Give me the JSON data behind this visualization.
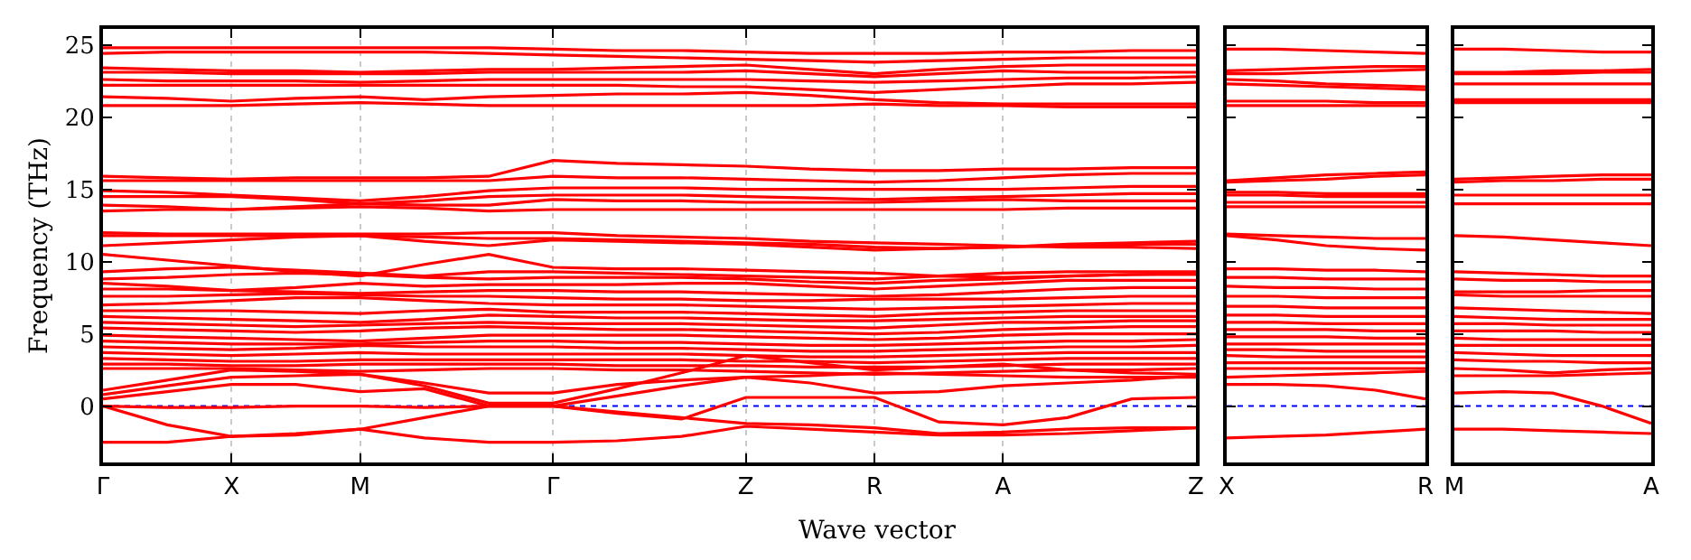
{
  "chart_data": [
    {
      "type": "line",
      "xlabel": "Wave vector",
      "ylabel": "Frequency (THz)",
      "grid": "x",
      "line_style": "solid",
      "categories": [
        "Γ",
        null,
        "X",
        null,
        "M",
        null,
        null,
        "Γ",
        null,
        null,
        "Z",
        null,
        "R",
        null,
        "A",
        null,
        null,
        "Z"
      ],
      "ylim": [
        -3.9,
        26.1
      ],
      "yticks": [
        0,
        5,
        10,
        15,
        20,
        25
      ],
      "ref_lines": [
        {
          "axis": "y",
          "value": 0,
          "color": "#0000ff",
          "line_style": "dotted"
        }
      ],
      "series": [
        {
          "color": "#ff0000",
          "values": [
            24.8,
            24.8,
            24.8,
            24.8,
            24.8,
            24.8,
            24.8,
            24.7,
            24.6,
            24.6,
            24.5,
            24.4,
            24.4,
            24.4,
            24.5,
            24.5,
            24.6,
            24.6
          ]
        },
        {
          "color": "#ff0000",
          "values": [
            24.4,
            24.5,
            24.5,
            24.5,
            24.5,
            24.5,
            24.4,
            24.3,
            24.2,
            24.1,
            24.0,
            23.9,
            23.8,
            23.9,
            24.0,
            24.1,
            24.1,
            24.1
          ]
        },
        {
          "color": "#ff0000",
          "values": [
            23.4,
            23.3,
            23.2,
            23.2,
            23.1,
            23.2,
            23.3,
            23.3,
            23.4,
            23.5,
            23.6,
            23.3,
            23.0,
            23.3,
            23.5,
            23.6,
            23.6,
            23.6
          ]
        },
        {
          "color": "#ff0000",
          "values": [
            23.1,
            23.1,
            23.0,
            23.0,
            23.0,
            23.0,
            23.1,
            23.1,
            23.1,
            23.1,
            23.2,
            23.0,
            22.8,
            23.0,
            23.2,
            23.1,
            23.1,
            23.1
          ]
        },
        {
          "color": "#ff0000",
          "values": [
            22.6,
            22.5,
            22.5,
            22.5,
            22.4,
            22.5,
            22.6,
            22.6,
            22.6,
            22.6,
            22.6,
            22.5,
            22.4,
            22.5,
            22.6,
            22.7,
            22.7,
            22.8
          ]
        },
        {
          "color": "#ff0000",
          "values": [
            22.2,
            22.2,
            22.2,
            22.2,
            22.2,
            22.2,
            22.2,
            22.2,
            22.2,
            22.1,
            22.1,
            21.9,
            21.7,
            21.9,
            22.1,
            22.3,
            22.3,
            22.4
          ]
        },
        {
          "color": "#ff0000",
          "values": [
            21.4,
            21.3,
            21.1,
            21.3,
            21.4,
            21.2,
            21.4,
            21.5,
            21.6,
            21.6,
            21.7,
            21.5,
            21.2,
            21.0,
            20.9,
            20.9,
            20.9,
            20.9
          ]
        },
        {
          "color": "#ff0000",
          "values": [
            20.8,
            20.8,
            20.8,
            20.9,
            21.0,
            20.9,
            20.8,
            20.8,
            20.8,
            20.8,
            20.8,
            20.8,
            20.9,
            20.8,
            20.8,
            20.7,
            20.7,
            20.7
          ]
        },
        {
          "color": "#ff0000",
          "values": [
            15.9,
            15.8,
            15.7,
            15.8,
            15.8,
            15.8,
            15.9,
            17.0,
            16.8,
            16.7,
            16.6,
            16.4,
            16.3,
            16.3,
            16.4,
            16.4,
            16.5,
            16.5
          ]
        },
        {
          "color": "#ff0000",
          "values": [
            15.6,
            15.6,
            15.6,
            15.6,
            15.6,
            15.6,
            15.6,
            15.9,
            15.8,
            15.8,
            15.7,
            15.6,
            15.5,
            15.6,
            15.8,
            16.0,
            16.1,
            16.1
          ]
        },
        {
          "color": "#ff0000",
          "values": [
            14.9,
            14.8,
            14.6,
            14.4,
            14.2,
            14.5,
            14.9,
            15.1,
            15.1,
            15.1,
            15.0,
            15.0,
            15.0,
            15.0,
            15.0,
            15.1,
            15.2,
            15.2
          ]
        },
        {
          "color": "#ff0000",
          "values": [
            14.5,
            14.5,
            14.5,
            14.3,
            14.0,
            14.2,
            14.5,
            14.6,
            14.6,
            14.6,
            14.5,
            14.4,
            14.3,
            14.4,
            14.5,
            14.6,
            14.7,
            14.7
          ]
        },
        {
          "color": "#ff0000",
          "values": [
            13.9,
            13.8,
            13.6,
            13.8,
            14.0,
            13.9,
            13.9,
            14.3,
            14.2,
            14.2,
            14.1,
            14.1,
            14.1,
            14.2,
            14.3,
            14.2,
            14.2,
            14.2
          ]
        },
        {
          "color": "#ff0000",
          "values": [
            13.5,
            13.6,
            13.6,
            13.7,
            13.8,
            13.7,
            13.5,
            13.6,
            13.6,
            13.6,
            13.6,
            13.6,
            13.6,
            13.6,
            13.6,
            13.7,
            13.7,
            13.7
          ]
        },
        {
          "color": "#ff0000",
          "values": [
            12.0,
            11.9,
            11.9,
            11.9,
            11.9,
            11.9,
            12.0,
            12.0,
            11.8,
            11.7,
            11.6,
            11.4,
            11.3,
            11.2,
            11.1,
            11.0,
            11.0,
            10.9
          ]
        },
        {
          "color": "#ff0000",
          "values": [
            11.8,
            11.8,
            11.8,
            11.8,
            11.8,
            11.7,
            11.6,
            11.6,
            11.5,
            11.4,
            11.3,
            11.2,
            11.0,
            10.9,
            11.0,
            11.1,
            11.2,
            11.2
          ]
        },
        {
          "color": "#ff0000",
          "values": [
            11.1,
            11.3,
            11.5,
            11.7,
            11.8,
            11.4,
            11.1,
            11.5,
            11.4,
            11.3,
            11.2,
            11.0,
            10.8,
            10.9,
            11.0,
            11.2,
            11.3,
            11.4
          ]
        },
        {
          "color": "#ff0000",
          "values": [
            10.5,
            10.1,
            9.7,
            9.3,
            9.0,
            9.8,
            10.5,
            9.6,
            9.5,
            9.5,
            9.4,
            9.3,
            9.2,
            9.0,
            8.9,
            9.0,
            9.1,
            9.2
          ]
        },
        {
          "color": "#ff0000",
          "values": [
            9.3,
            9.5,
            9.6,
            9.4,
            9.2,
            9.0,
            9.3,
            9.3,
            9.2,
            9.1,
            9.0,
            8.9,
            8.8,
            9.0,
            9.2,
            9.3,
            9.3,
            9.3
          ]
        },
        {
          "color": "#ff0000",
          "values": [
            8.8,
            8.9,
            9.1,
            9.2,
            9.1,
            8.9,
            8.8,
            8.9,
            8.9,
            8.9,
            8.8,
            8.6,
            8.5,
            8.7,
            8.8,
            9.0,
            9.1,
            9.1
          ]
        },
        {
          "color": "#ff0000",
          "values": [
            8.5,
            8.3,
            8.0,
            8.2,
            8.5,
            8.3,
            8.4,
            8.4,
            8.4,
            8.5,
            8.5,
            8.3,
            8.1,
            8.3,
            8.5,
            8.7,
            8.7,
            8.7
          ]
        },
        {
          "color": "#ff0000",
          "values": [
            8.1,
            8.1,
            8.0,
            7.9,
            7.8,
            7.9,
            8.0,
            8.0,
            7.9,
            7.9,
            7.8,
            7.7,
            7.6,
            7.7,
            7.9,
            8.1,
            8.2,
            8.2
          ]
        },
        {
          "color": "#ff0000",
          "values": [
            7.6,
            7.6,
            7.7,
            7.8,
            7.7,
            7.6,
            7.6,
            7.5,
            7.4,
            7.4,
            7.3,
            7.3,
            7.4,
            7.4,
            7.4,
            7.5,
            7.6,
            7.6
          ]
        },
        {
          "color": "#ff0000",
          "values": [
            7.0,
            7.1,
            7.3,
            7.5,
            7.5,
            7.3,
            7.1,
            7.0,
            7.0,
            7.0,
            6.9,
            6.8,
            6.7,
            6.8,
            6.9,
            7.0,
            7.1,
            7.1
          ]
        },
        {
          "color": "#ff0000",
          "values": [
            6.6,
            6.6,
            6.6,
            6.5,
            6.4,
            6.6,
            6.7,
            6.5,
            6.5,
            6.5,
            6.4,
            6.3,
            6.2,
            6.4,
            6.5,
            6.6,
            6.6,
            6.6
          ]
        },
        {
          "color": "#ff0000",
          "values": [
            6.2,
            6.1,
            6.0,
            5.9,
            5.8,
            6.0,
            6.3,
            6.2,
            6.1,
            6.1,
            6.0,
            5.9,
            5.9,
            6.0,
            6.1,
            6.2,
            6.2,
            6.2
          ]
        },
        {
          "color": "#ff0000",
          "values": [
            5.8,
            5.7,
            5.6,
            5.5,
            5.6,
            5.7,
            5.8,
            5.7,
            5.7,
            5.7,
            5.6,
            5.5,
            5.4,
            5.6,
            5.8,
            5.8,
            5.9,
            5.9
          ]
        },
        {
          "color": "#ff0000",
          "values": [
            5.4,
            5.3,
            5.2,
            5.1,
            5.2,
            5.4,
            5.5,
            5.4,
            5.3,
            5.3,
            5.2,
            5.1,
            5.0,
            5.1,
            5.3,
            5.4,
            5.5,
            5.5
          ]
        },
        {
          "color": "#ff0000",
          "values": [
            4.9,
            4.8,
            4.7,
            4.6,
            4.5,
            4.7,
            4.9,
            4.9,
            4.9,
            4.9,
            4.8,
            4.7,
            4.6,
            4.7,
            4.9,
            5.0,
            5.0,
            5.0
          ]
        },
        {
          "color": "#ff0000",
          "values": [
            4.5,
            4.4,
            4.3,
            4.3,
            4.3,
            4.4,
            4.5,
            4.5,
            4.4,
            4.4,
            4.3,
            4.2,
            4.2,
            4.3,
            4.4,
            4.5,
            4.5,
            4.6
          ]
        },
        {
          "color": "#ff0000",
          "values": [
            4.1,
            4.0,
            3.9,
            4.0,
            4.2,
            4.1,
            4.1,
            4.1,
            4.0,
            4.0,
            3.9,
            3.8,
            3.8,
            3.9,
            4.0,
            4.1,
            4.1,
            4.2
          ]
        },
        {
          "color": "#ff0000",
          "values": [
            3.7,
            3.6,
            3.5,
            3.6,
            3.7,
            3.6,
            3.6,
            3.6,
            3.6,
            3.6,
            3.5,
            3.4,
            3.4,
            3.5,
            3.6,
            3.7,
            3.7,
            3.7
          ]
        },
        {
          "color": "#ff0000",
          "values": [
            3.3,
            3.2,
            3.1,
            3.1,
            3.2,
            3.2,
            3.2,
            3.2,
            3.2,
            3.2,
            3.1,
            3.1,
            3.0,
            3.1,
            3.2,
            3.3,
            3.3,
            3.3
          ]
        },
        {
          "color": "#ff0000",
          "values": [
            2.9,
            2.9,
            2.8,
            2.8,
            2.9,
            2.9,
            2.9,
            2.9,
            2.8,
            2.8,
            2.8,
            2.7,
            2.7,
            2.7,
            2.8,
            2.9,
            2.9,
            2.9
          ]
        },
        {
          "color": "#ff0000",
          "values": [
            2.6,
            2.6,
            2.6,
            2.5,
            2.4,
            2.5,
            2.6,
            2.6,
            2.5,
            2.5,
            2.4,
            2.3,
            2.2,
            2.3,
            2.4,
            2.5,
            2.5,
            2.6
          ]
        },
        {
          "color": "#ff0000",
          "values": [
            1.1,
            1.8,
            2.5,
            2.4,
            2.2,
            1.6,
            0.9,
            0.9,
            1.5,
            1.8,
            2.0,
            2.1,
            2.3,
            2.2,
            2.1,
            2.0,
            2.0,
            2.0
          ]
        },
        {
          "color": "#ff0000",
          "values": [
            0.8,
            1.4,
            2.0,
            2.1,
            2.2,
            1.4,
            0.2,
            0.2,
            1.2,
            2.3,
            3.5,
            3.0,
            2.5,
            2.7,
            2.9,
            2.5,
            2.3,
            2.2
          ]
        },
        {
          "color": "#ff0000",
          "values": [
            0.5,
            1.0,
            1.5,
            1.5,
            1.0,
            1.2,
            0.0,
            0.0,
            0.7,
            1.4,
            2.0,
            1.6,
            0.9,
            1.0,
            1.4,
            1.6,
            1.8,
            2.1
          ]
        },
        {
          "color": "#ff0000",
          "values": [
            0.0,
            -0.1,
            -0.1,
            0.0,
            0.0,
            -0.1,
            0.0,
            0.0,
            -0.5,
            -0.9,
            0.6,
            0.6,
            0.6,
            -1.1,
            -1.3,
            -0.8,
            0.5,
            0.6
          ]
        },
        {
          "color": "#ff0000",
          "values": [
            0.0,
            -1.3,
            -2.1,
            -2.0,
            -1.6,
            -0.8,
            0.0,
            0.0,
            -0.4,
            -0.8,
            -1.2,
            -1.3,
            -1.5,
            -1.9,
            -1.8,
            -1.6,
            -1.5,
            -1.5
          ]
        },
        {
          "color": "#ff0000",
          "values": [
            -2.5,
            -2.5,
            -2.1,
            -1.9,
            -1.6,
            -2.2,
            -2.5,
            -2.5,
            -2.4,
            -2.1,
            -1.4,
            -1.6,
            -1.8,
            -2.0,
            -2.0,
            -1.9,
            -1.7,
            -1.5
          ]
        }
      ]
    },
    {
      "type": "line",
      "grid": false,
      "line_style": "solid",
      "tick_labels": "x",
      "categories": [
        "X",
        null,
        null,
        null,
        "R"
      ],
      "ylim": [
        -3.9,
        26.1
      ],
      "yticks": [
        0,
        5,
        10,
        15,
        20,
        25
      ],
      "ref_lines": [
        {
          "axis": "y",
          "value": 0,
          "color": "#0000ff",
          "line_style": "dotted"
        }
      ],
      "series": [
        {
          "color": "#ff0000",
          "values": [
            24.7,
            24.7,
            24.6,
            24.5,
            24.4
          ]
        },
        {
          "color": "#ff0000",
          "values": [
            23.2,
            23.3,
            23.4,
            23.5,
            23.5
          ]
        },
        {
          "color": "#ff0000",
          "values": [
            23.0,
            23.0,
            23.1,
            23.2,
            23.3
          ]
        },
        {
          "color": "#ff0000",
          "values": [
            22.6,
            22.5,
            22.3,
            22.2,
            22.1
          ]
        },
        {
          "color": "#ff0000",
          "values": [
            22.3,
            22.2,
            22.1,
            22.0,
            21.9
          ]
        },
        {
          "color": "#ff0000",
          "values": [
            21.1,
            21.1,
            21.1,
            21.0,
            21.0
          ]
        },
        {
          "color": "#ff0000",
          "values": [
            20.8,
            20.8,
            20.8,
            20.8,
            20.8
          ]
        },
        {
          "color": "#ff0000",
          "values": [
            15.6,
            15.8,
            16.0,
            16.1,
            16.2
          ]
        },
        {
          "color": "#ff0000",
          "values": [
            15.5,
            15.6,
            15.7,
            15.9,
            16.0
          ]
        },
        {
          "color": "#ff0000",
          "values": [
            14.8,
            14.8,
            14.7,
            14.7,
            14.7
          ]
        },
        {
          "color": "#ff0000",
          "values": [
            14.6,
            14.6,
            14.5,
            14.5,
            14.5
          ]
        },
        {
          "color": "#ff0000",
          "values": [
            14.1,
            14.1,
            14.1,
            14.1,
            14.1
          ]
        },
        {
          "color": "#ff0000",
          "values": [
            13.8,
            13.8,
            13.8,
            13.8,
            13.8
          ]
        },
        {
          "color": "#ff0000",
          "values": [
            11.9,
            11.8,
            11.7,
            11.6,
            11.6
          ]
        },
        {
          "color": "#ff0000",
          "values": [
            11.8,
            11.5,
            11.1,
            10.9,
            10.8
          ]
        },
        {
          "color": "#ff0000",
          "values": [
            9.5,
            9.5,
            9.4,
            9.4,
            9.3
          ]
        },
        {
          "color": "#ff0000",
          "values": [
            8.9,
            8.9,
            8.8,
            8.8,
            8.8
          ]
        },
        {
          "color": "#ff0000",
          "values": [
            8.3,
            8.2,
            8.2,
            8.1,
            8.1
          ]
        },
        {
          "color": "#ff0000",
          "values": [
            7.6,
            7.6,
            7.5,
            7.5,
            7.5
          ]
        },
        {
          "color": "#ff0000",
          "values": [
            6.9,
            6.9,
            6.8,
            6.8,
            6.8
          ]
        },
        {
          "color": "#ff0000",
          "values": [
            6.3,
            6.3,
            6.2,
            6.2,
            6.2
          ]
        },
        {
          "color": "#ff0000",
          "values": [
            5.8,
            5.8,
            5.7,
            5.7,
            5.7
          ]
        },
        {
          "color": "#ff0000",
          "values": [
            5.3,
            5.3,
            5.3,
            5.2,
            5.2
          ]
        },
        {
          "color": "#ff0000",
          "values": [
            4.8,
            4.8,
            4.8,
            4.7,
            4.7
          ]
        },
        {
          "color": "#ff0000",
          "values": [
            4.3,
            4.3,
            4.3,
            4.3,
            4.3
          ]
        },
        {
          "color": "#ff0000",
          "values": [
            3.9,
            3.9,
            3.8,
            3.8,
            3.8
          ]
        },
        {
          "color": "#ff0000",
          "values": [
            3.5,
            3.4,
            3.4,
            3.4,
            3.4
          ]
        },
        {
          "color": "#ff0000",
          "values": [
            3.0,
            3.0,
            3.0,
            3.0,
            3.0
          ]
        },
        {
          "color": "#ff0000",
          "values": [
            2.6,
            2.6,
            2.6,
            2.6,
            2.6
          ]
        },
        {
          "color": "#ff0000",
          "values": [
            2.0,
            2.1,
            2.2,
            2.3,
            2.4
          ]
        },
        {
          "color": "#ff0000",
          "values": [
            1.5,
            1.5,
            1.4,
            1.1,
            0.5
          ]
        },
        {
          "color": "#ff0000",
          "values": [
            -2.2,
            -2.1,
            -2.0,
            -1.8,
            -1.6
          ]
        }
      ]
    },
    {
      "type": "line",
      "grid": false,
      "line_style": "solid",
      "tick_labels": "x",
      "categories": [
        "M",
        null,
        null,
        null,
        "A"
      ],
      "ylim": [
        -3.9,
        26.1
      ],
      "yticks": [
        0,
        5,
        10,
        15,
        20,
        25
      ],
      "ref_lines": [
        {
          "axis": "y",
          "value": 0,
          "color": "#0000ff",
          "line_style": "dotted"
        }
      ],
      "series": [
        {
          "color": "#ff0000",
          "values": [
            24.7,
            24.7,
            24.6,
            24.5,
            24.5
          ]
        },
        {
          "color": "#ff0000",
          "values": [
            23.1,
            23.1,
            23.2,
            23.2,
            23.3
          ]
        },
        {
          "color": "#ff0000",
          "values": [
            23.0,
            23.0,
            23.0,
            23.1,
            23.1
          ]
        },
        {
          "color": "#ff0000",
          "values": [
            22.3,
            22.3,
            22.3,
            22.3,
            22.3
          ]
        },
        {
          "color": "#ff0000",
          "values": [
            21.2,
            21.2,
            21.2,
            21.2,
            21.2
          ]
        },
        {
          "color": "#ff0000",
          "values": [
            21.0,
            21.0,
            21.0,
            21.0,
            21.0
          ]
        },
        {
          "color": "#ff0000",
          "values": [
            15.7,
            15.8,
            15.9,
            16.0,
            16.0
          ]
        },
        {
          "color": "#ff0000",
          "values": [
            15.5,
            15.6,
            15.6,
            15.7,
            15.7
          ]
        },
        {
          "color": "#ff0000",
          "values": [
            14.6,
            14.6,
            14.6,
            14.6,
            14.6
          ]
        },
        {
          "color": "#ff0000",
          "values": [
            14.0,
            14.0,
            14.0,
            14.0,
            14.0
          ]
        },
        {
          "color": "#ff0000",
          "values": [
            11.8,
            11.7,
            11.5,
            11.3,
            11.1
          ]
        },
        {
          "color": "#ff0000",
          "values": [
            9.3,
            9.2,
            9.1,
            9.0,
            9.0
          ]
        },
        {
          "color": "#ff0000",
          "values": [
            8.8,
            8.7,
            8.7,
            8.6,
            8.6
          ]
        },
        {
          "color": "#ff0000",
          "values": [
            7.9,
            7.9,
            7.9,
            8.0,
            8.0
          ]
        },
        {
          "color": "#ff0000",
          "values": [
            7.7,
            7.6,
            7.6,
            7.6,
            7.6
          ]
        },
        {
          "color": "#ff0000",
          "values": [
            6.8,
            6.7,
            6.6,
            6.5,
            6.4
          ]
        },
        {
          "color": "#ff0000",
          "values": [
            6.2,
            6.1,
            6.0,
            6.0,
            6.0
          ]
        },
        {
          "color": "#ff0000",
          "values": [
            5.7,
            5.7,
            5.6,
            5.6,
            5.6
          ]
        },
        {
          "color": "#ff0000",
          "values": [
            5.2,
            5.2,
            5.2,
            5.1,
            5.1
          ]
        },
        {
          "color": "#ff0000",
          "values": [
            4.7,
            4.6,
            4.6,
            4.6,
            4.6
          ]
        },
        {
          "color": "#ff0000",
          "values": [
            4.2,
            4.2,
            4.2,
            4.2,
            4.2
          ]
        },
        {
          "color": "#ff0000",
          "values": [
            3.7,
            3.6,
            3.5,
            3.5,
            3.5
          ]
        },
        {
          "color": "#ff0000",
          "values": [
            3.2,
            3.1,
            3.1,
            3.0,
            3.0
          ]
        },
        {
          "color": "#ff0000",
          "values": [
            2.6,
            2.5,
            2.3,
            2.5,
            2.6
          ]
        },
        {
          "color": "#ff0000",
          "values": [
            2.1,
            2.1,
            2.1,
            2.2,
            2.3
          ]
        },
        {
          "color": "#ff0000",
          "values": [
            0.9,
            1.0,
            0.9,
            0.0,
            -1.2
          ]
        },
        {
          "color": "#ff0000",
          "values": [
            -1.6,
            -1.6,
            -1.7,
            -1.8,
            -1.9
          ]
        }
      ]
    }
  ]
}
